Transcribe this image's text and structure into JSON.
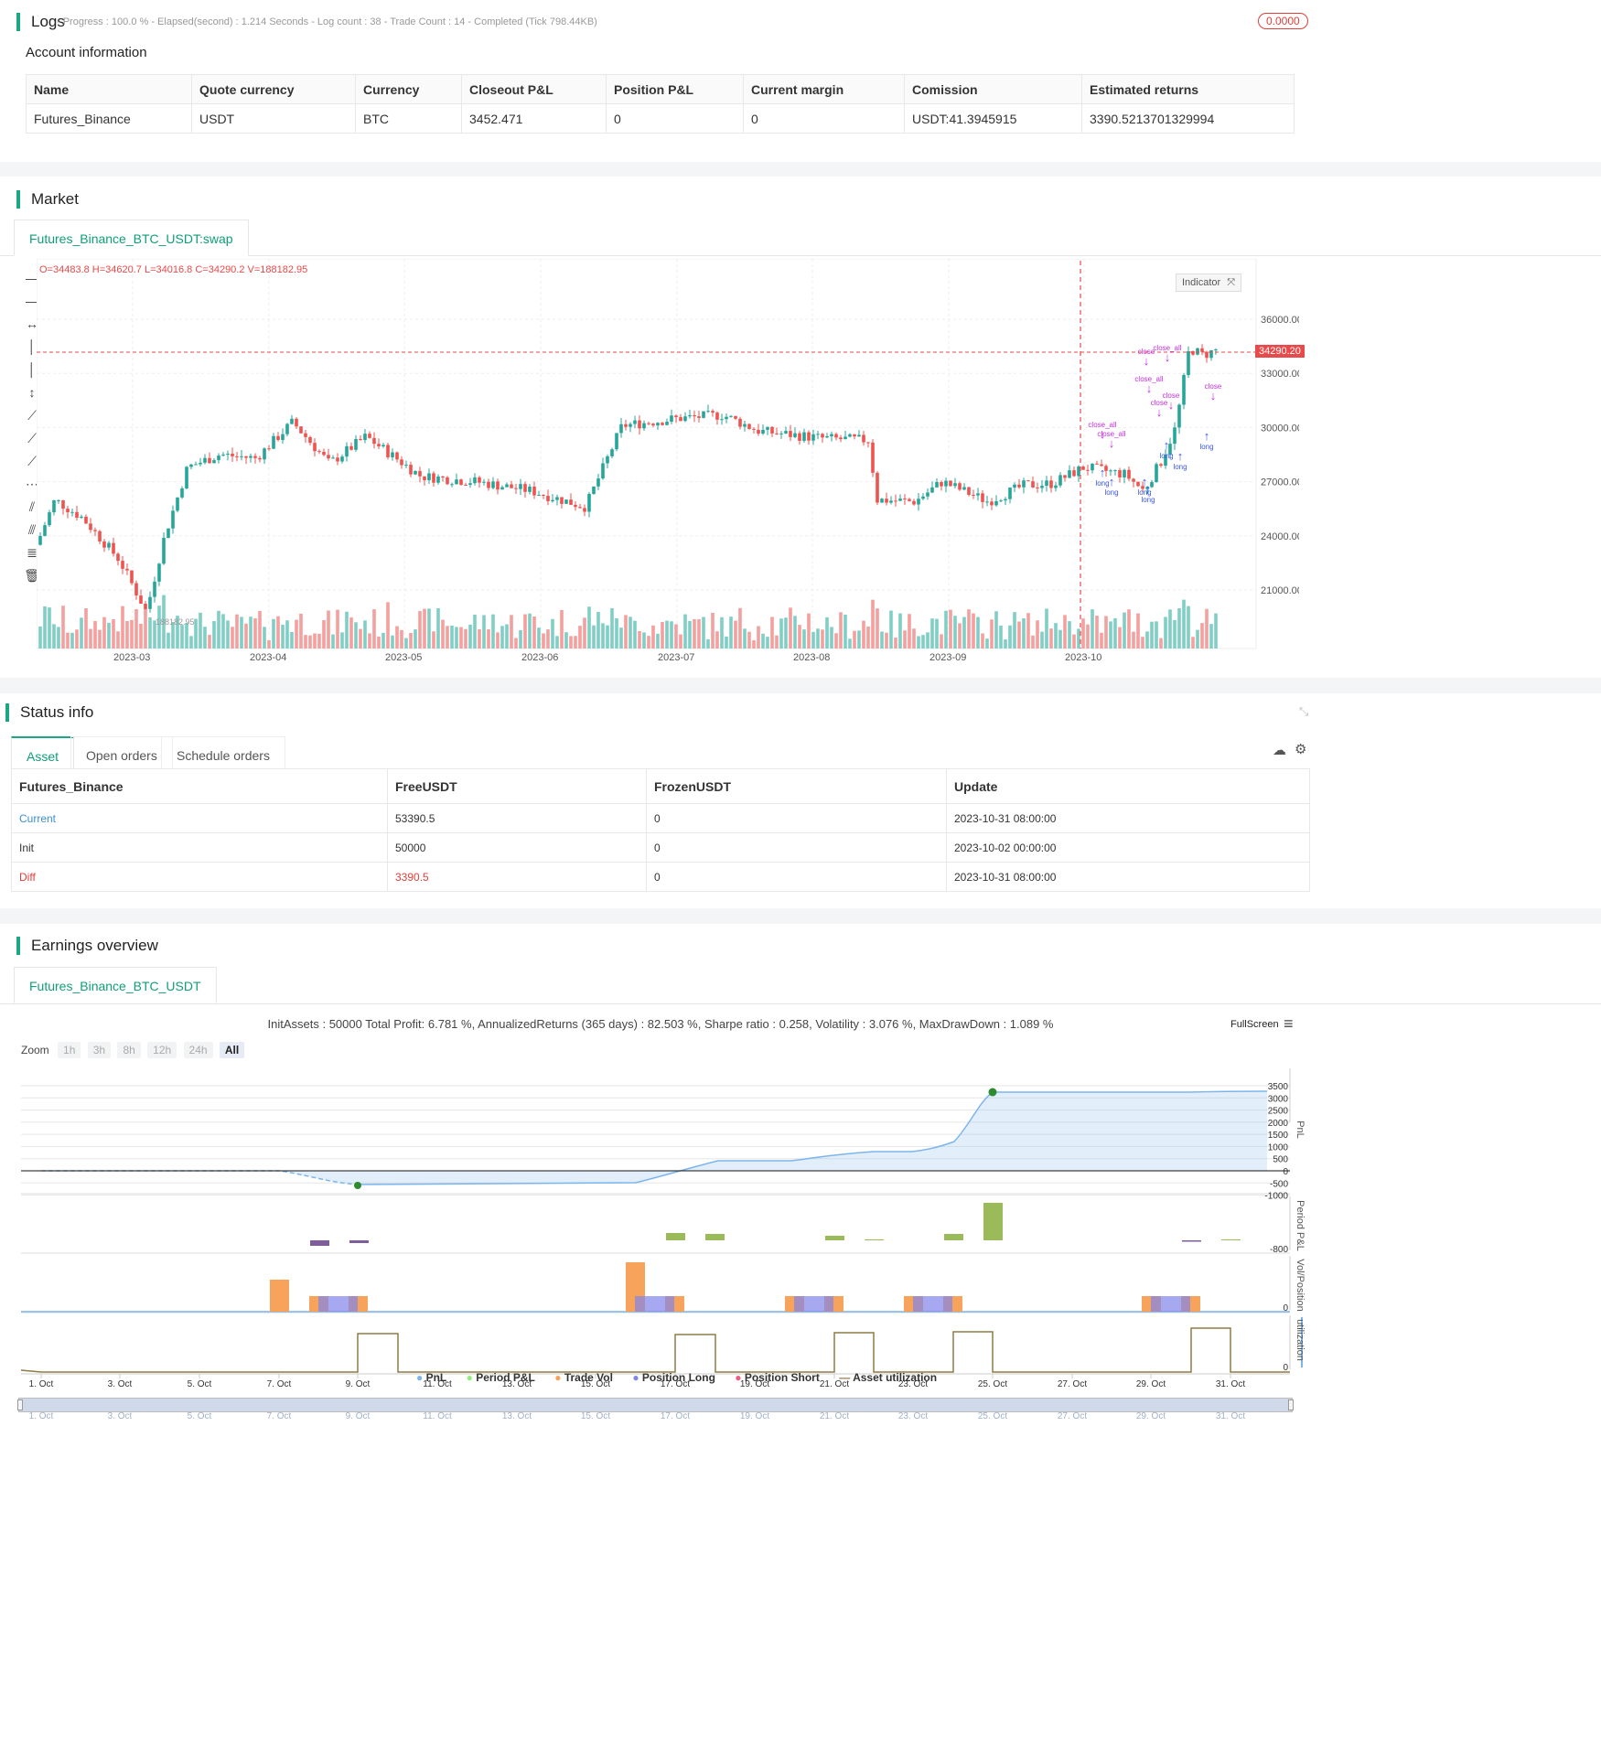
{
  "logs": {
    "title": "Logs",
    "status_line": "- Progress : 100.0 % - Elapsed(second) : 1.214  Seconds - Log count : 38 - Trade Count : 14 - Completed (Tick 798.44KB)",
    "badge": "0.0000",
    "account_heading": "Account information",
    "columns": [
      "Name",
      "Quote currency",
      "Currency",
      "Closeout P&L",
      "Position P&L",
      "Current margin",
      "Comission",
      "Estimated returns"
    ],
    "row": [
      "Futures_Binance",
      "USDT",
      "BTC",
      "3452.471",
      "0",
      "0",
      "USDT:41.3945915",
      "3390.5213701329994"
    ]
  },
  "market": {
    "title": "Market",
    "tab": "Futures_Binance_BTC_USDT:swap",
    "ohlc": "O=34483.8 H=34620.7 L=34016.8 C=34290.2 V=188182.95",
    "indicator_btn": "Indicator",
    "last_price": "34290.20",
    "volume_label": "188182.95",
    "price_ticks": [
      "36000.00",
      "33000.00",
      "30000.00",
      "27000.00",
      "24000.00",
      "21000.00"
    ],
    "time_ticks": [
      "2023-03",
      "2023-04",
      "2023-05",
      "2023-06",
      "2023-07",
      "2023-08",
      "2023-09",
      "2023-10"
    ],
    "signal_labels": {
      "long": "long",
      "close": "close",
      "close_all": "close_all"
    }
  },
  "status": {
    "title": "Status info",
    "tabs": [
      "Asset",
      "Open orders",
      "Schedule orders"
    ],
    "columns": [
      "Futures_Binance",
      "FreeUSDT",
      "FrozenUSDT",
      "Update"
    ],
    "rows": [
      [
        "Current",
        "53390.5",
        "0",
        "2023-10-31 08:00:00"
      ],
      [
        "Init",
        "50000",
        "0",
        "2023-10-02 00:00:00"
      ],
      [
        "Diff",
        "3390.5",
        "0",
        "2023-10-31 08:00:00"
      ]
    ]
  },
  "earnings": {
    "title": "Earnings overview",
    "tab": "Futures_Binance_BTC_USDT",
    "summary": "InitAssets : 50000 Total Profit: 6.781 %, AnnualizedReturns (365 days) : 82.503 %, Sharpe ratio : 0.258, Volatility : 3.076 %, MaxDrawDown : 1.089 %",
    "fullscreen": "FullScreen",
    "zoom_label": "Zoom",
    "zoom_options": [
      "1h",
      "3h",
      "8h",
      "12h",
      "24h",
      "All"
    ],
    "pnl_ticks": [
      "3500",
      "3000",
      "2500",
      "2000",
      "1500",
      "1000",
      "500",
      "0",
      "-500",
      "-1000"
    ],
    "period_tick": "-800",
    "axis_titles": [
      "PnL",
      "Period P&L",
      "Vol/Position",
      "utilization"
    ],
    "zero_ticks": [
      "0",
      "0"
    ],
    "date_ticks": [
      "1. Oct",
      "3. Oct",
      "5. Oct",
      "7. Oct",
      "9. Oct",
      "11. Oct",
      "13. Oct",
      "15. Oct",
      "17. Oct",
      "19. Oct",
      "21. Oct",
      "23. Oct",
      "25. Oct",
      "27. Oct",
      "29. Oct",
      "31. Oct"
    ],
    "legend": [
      "PnL",
      "Period P&L",
      "Trade Vol",
      "Position Long",
      "Position Short",
      "Asset utilization"
    ],
    "colors": {
      "pnl": "#7cb5ec",
      "period": "#90ed7d",
      "trade_vol": "#f7a35c",
      "long": "#8085e9",
      "short": "#f15c80",
      "util": "#8d7b45"
    }
  }
}
